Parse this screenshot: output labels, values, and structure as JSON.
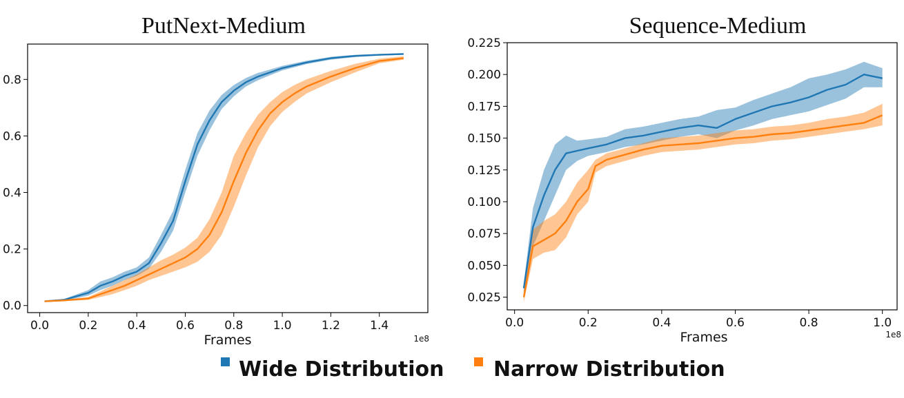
{
  "chart_data": [
    {
      "type": "line",
      "title": "PutNext-Medium",
      "xlabel": "Frames",
      "x_offset_label": "1e8",
      "ylabel": "",
      "xlim": [
        -0.05,
        1.6
      ],
      "ylim": [
        -0.025,
        0.925
      ],
      "xticks": [
        0.0,
        0.2,
        0.4,
        0.6,
        0.8,
        1.0,
        1.2,
        1.4
      ],
      "xtick_labels": [
        "0.0",
        "0.2",
        "0.4",
        "0.6",
        "0.8",
        "1.0",
        "1.2",
        "1.4"
      ],
      "yticks": [
        0.0,
        0.2,
        0.4,
        0.6,
        0.8
      ],
      "ytick_labels": [
        "0.0",
        "0.2",
        "0.4",
        "0.6",
        "0.8"
      ],
      "series": [
        {
          "name": "Wide Distribution",
          "color": "#1f77b4",
          "x": [
            0.02,
            0.1,
            0.2,
            0.25,
            0.3,
            0.35,
            0.4,
            0.45,
            0.5,
            0.55,
            0.6,
            0.65,
            0.7,
            0.75,
            0.8,
            0.85,
            0.9,
            0.95,
            1.0,
            1.1,
            1.2,
            1.3,
            1.4,
            1.5
          ],
          "mean": [
            0.015,
            0.02,
            0.045,
            0.07,
            0.085,
            0.105,
            0.12,
            0.15,
            0.22,
            0.3,
            0.44,
            0.57,
            0.655,
            0.72,
            0.76,
            0.79,
            0.81,
            0.825,
            0.84,
            0.86,
            0.875,
            0.883,
            0.887,
            0.89
          ],
          "lower": [
            0.013,
            0.017,
            0.035,
            0.055,
            0.07,
            0.09,
            0.105,
            0.13,
            0.19,
            0.265,
            0.4,
            0.53,
            0.62,
            0.695,
            0.74,
            0.775,
            0.797,
            0.815,
            0.832,
            0.854,
            0.87,
            0.879,
            0.884,
            0.887
          ],
          "upper": [
            0.017,
            0.023,
            0.055,
            0.085,
            0.1,
            0.12,
            0.135,
            0.17,
            0.25,
            0.335,
            0.48,
            0.61,
            0.69,
            0.745,
            0.78,
            0.805,
            0.823,
            0.835,
            0.848,
            0.866,
            0.88,
            0.887,
            0.89,
            0.893
          ]
        },
        {
          "name": "Narrow Distribution",
          "color": "#ff7f0e",
          "x": [
            0.02,
            0.1,
            0.2,
            0.25,
            0.3,
            0.35,
            0.4,
            0.45,
            0.5,
            0.55,
            0.6,
            0.65,
            0.7,
            0.75,
            0.8,
            0.85,
            0.9,
            0.95,
            1.0,
            1.05,
            1.1,
            1.2,
            1.3,
            1.4,
            1.5
          ],
          "mean": [
            0.015,
            0.018,
            0.025,
            0.04,
            0.055,
            0.07,
            0.09,
            0.11,
            0.13,
            0.15,
            0.17,
            0.2,
            0.25,
            0.33,
            0.44,
            0.54,
            0.62,
            0.68,
            0.72,
            0.75,
            0.775,
            0.81,
            0.84,
            0.865,
            0.875
          ],
          "lower": [
            0.013,
            0.016,
            0.02,
            0.03,
            0.04,
            0.055,
            0.07,
            0.09,
            0.105,
            0.12,
            0.135,
            0.155,
            0.19,
            0.25,
            0.35,
            0.46,
            0.56,
            0.635,
            0.685,
            0.72,
            0.75,
            0.79,
            0.825,
            0.857,
            0.87
          ],
          "upper": [
            0.017,
            0.021,
            0.03,
            0.05,
            0.07,
            0.09,
            0.11,
            0.135,
            0.16,
            0.18,
            0.205,
            0.24,
            0.305,
            0.4,
            0.53,
            0.61,
            0.675,
            0.72,
            0.755,
            0.78,
            0.8,
            0.83,
            0.855,
            0.873,
            0.882
          ]
        }
      ]
    },
    {
      "type": "line",
      "title": "Sequence-Medium",
      "xlabel": "Frames",
      "x_offset_label": "1e8",
      "ylabel": "",
      "xlim": [
        -0.02,
        1.04
      ],
      "ylim": [
        0.015,
        0.225
      ],
      "xticks": [
        0.0,
        0.2,
        0.4,
        0.6,
        0.8,
        1.0
      ],
      "xtick_labels": [
        "0.0",
        "0.2",
        "0.4",
        "0.6",
        "0.8",
        "1.0"
      ],
      "yticks": [
        0.025,
        0.05,
        0.075,
        0.1,
        0.125,
        0.15,
        0.175,
        0.2,
        0.225
      ],
      "ytick_labels": [
        "0.025",
        "0.050",
        "0.075",
        "0.100",
        "0.125",
        "0.150",
        "0.175",
        "0.200",
        "0.225"
      ],
      "series": [
        {
          "name": "Wide Distribution",
          "color": "#1f77b4",
          "x": [
            0.025,
            0.05,
            0.08,
            0.11,
            0.14,
            0.17,
            0.2,
            0.25,
            0.3,
            0.35,
            0.4,
            0.45,
            0.5,
            0.55,
            0.6,
            0.65,
            0.7,
            0.75,
            0.8,
            0.85,
            0.9,
            0.95,
            1.0
          ],
          "mean": [
            0.032,
            0.08,
            0.105,
            0.125,
            0.138,
            0.14,
            0.142,
            0.145,
            0.15,
            0.152,
            0.155,
            0.158,
            0.16,
            0.158,
            0.165,
            0.17,
            0.175,
            0.178,
            0.182,
            0.188,
            0.192,
            0.2,
            0.197
          ],
          "lower": [
            0.028,
            0.065,
            0.085,
            0.105,
            0.125,
            0.132,
            0.136,
            0.139,
            0.143,
            0.145,
            0.148,
            0.151,
            0.153,
            0.15,
            0.156,
            0.16,
            0.165,
            0.168,
            0.171,
            0.176,
            0.181,
            0.19,
            0.19
          ],
          "upper": [
            0.036,
            0.095,
            0.125,
            0.145,
            0.152,
            0.148,
            0.149,
            0.151,
            0.157,
            0.159,
            0.162,
            0.165,
            0.167,
            0.172,
            0.174,
            0.18,
            0.185,
            0.19,
            0.197,
            0.2,
            0.204,
            0.21,
            0.205
          ]
        },
        {
          "name": "Narrow Distribution",
          "color": "#ff7f0e",
          "x": [
            0.025,
            0.05,
            0.08,
            0.11,
            0.14,
            0.17,
            0.2,
            0.22,
            0.25,
            0.3,
            0.35,
            0.4,
            0.45,
            0.5,
            0.55,
            0.6,
            0.65,
            0.7,
            0.75,
            0.8,
            0.85,
            0.9,
            0.95,
            1.0
          ],
          "mean": [
            0.025,
            0.065,
            0.07,
            0.075,
            0.085,
            0.1,
            0.11,
            0.128,
            0.133,
            0.137,
            0.141,
            0.144,
            0.145,
            0.146,
            0.148,
            0.15,
            0.151,
            0.153,
            0.154,
            0.156,
            0.158,
            0.16,
            0.162,
            0.168
          ],
          "lower": [
            0.021,
            0.055,
            0.06,
            0.062,
            0.072,
            0.09,
            0.1,
            0.123,
            0.128,
            0.132,
            0.136,
            0.139,
            0.14,
            0.141,
            0.143,
            0.145,
            0.146,
            0.148,
            0.149,
            0.151,
            0.153,
            0.155,
            0.157,
            0.16
          ],
          "upper": [
            0.029,
            0.078,
            0.085,
            0.09,
            0.1,
            0.115,
            0.125,
            0.133,
            0.138,
            0.142,
            0.146,
            0.15,
            0.151,
            0.152,
            0.154,
            0.156,
            0.157,
            0.159,
            0.16,
            0.162,
            0.165,
            0.167,
            0.17,
            0.177
          ]
        }
      ]
    }
  ],
  "legend": {
    "items": [
      {
        "label": "Wide Distribution",
        "color": "#1f77b4"
      },
      {
        "label": "Narrow Distribution",
        "color": "#ff7f0e"
      }
    ]
  }
}
